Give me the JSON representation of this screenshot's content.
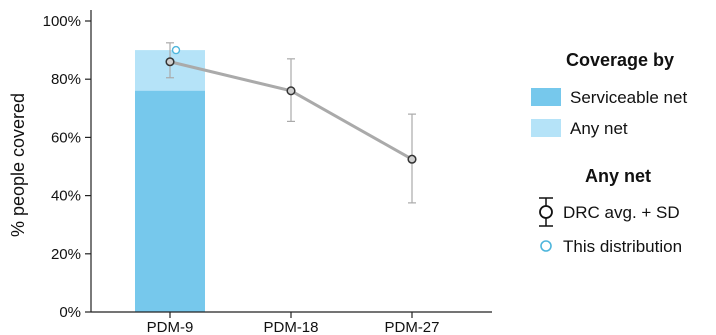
{
  "chart_data": {
    "type": "bar",
    "ylabel": "% people covered",
    "ylim": [
      0,
      100
    ],
    "yticks": [
      0,
      20,
      40,
      60,
      80,
      100
    ],
    "ytick_suffix": "%",
    "categories": [
      "PDM-9",
      "PDM-18",
      "PDM-27"
    ],
    "bars": [
      {
        "category": "PDM-9",
        "serviceable": 76,
        "any": 90
      }
    ],
    "drc_avg": {
      "values": [
        86,
        76,
        52.5
      ],
      "sd_low": [
        80.5,
        65.5,
        37.5
      ],
      "sd_high": [
        92.5,
        87,
        68
      ]
    },
    "this_distribution": [
      {
        "category": "PDM-9",
        "value": 90
      }
    ],
    "legend": {
      "placement": "right",
      "coverage_title": "Coverage by",
      "serviceable_label": "Serviceable net",
      "any_label": "Any net",
      "anynet_title": "Any net",
      "drc_label": "DRC avg. + SD",
      "this_label": "This distribution"
    },
    "colors": {
      "serviceable": "#76C8EC",
      "any": "#B5E3F8",
      "line": "#AAAAAA",
      "error": "#AAAAAA",
      "marker": "#333333",
      "this_marker": "#4FB6DC"
    }
  }
}
